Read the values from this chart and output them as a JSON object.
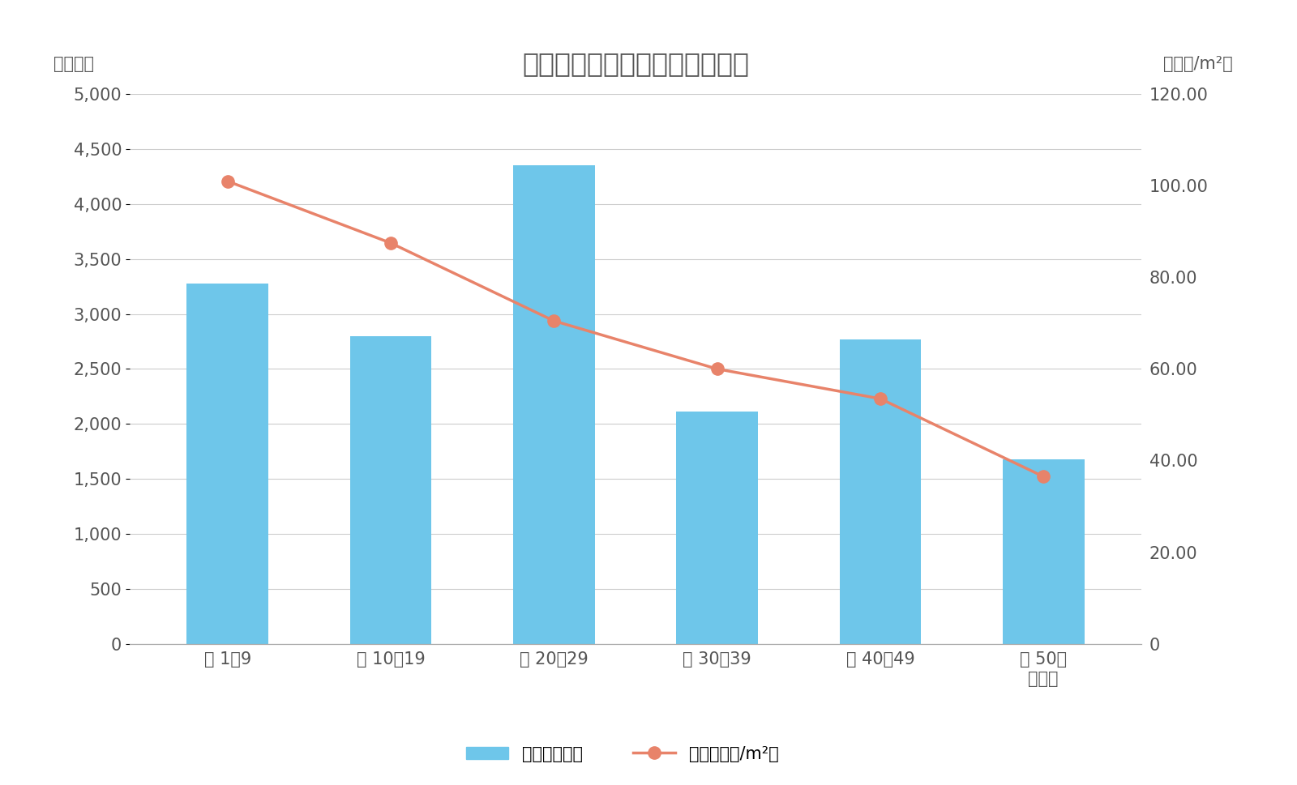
{
  "title": "板橋区築年数別マンション価格",
  "categories": [
    "築 1〜9",
    "築 10〜19",
    "築 20〜29",
    "築 30〜39",
    "築 40〜49",
    "築 50〜\n（年）"
  ],
  "bar_values": [
    3280,
    2800,
    4350,
    2110,
    2770,
    1680
  ],
  "line_values": [
    101.0,
    87.5,
    70.5,
    60.0,
    53.5,
    36.5
  ],
  "bar_color": "#6EC6EA",
  "line_color": "#E8836A",
  "left_ylabel": "（万円）",
  "right_ylabel": "（万円/m²）",
  "left_ylim": [
    0,
    5000
  ],
  "right_ylim": [
    0,
    120
  ],
  "left_yticks": [
    0,
    500,
    1000,
    1500,
    2000,
    2500,
    3000,
    3500,
    4000,
    4500,
    5000
  ],
  "right_yticks": [
    0,
    20.0,
    40.0,
    60.0,
    80.0,
    100.0,
    120.0
  ],
  "legend_bar_label": "価格（万円）",
  "legend_line_label": "単価（万円/m²）",
  "background_color": "#ffffff",
  "title_fontsize": 24,
  "axis_label_fontsize": 15,
  "tick_fontsize": 15,
  "legend_fontsize": 15,
  "grid_color": "#cccccc",
  "text_color": "#555555"
}
